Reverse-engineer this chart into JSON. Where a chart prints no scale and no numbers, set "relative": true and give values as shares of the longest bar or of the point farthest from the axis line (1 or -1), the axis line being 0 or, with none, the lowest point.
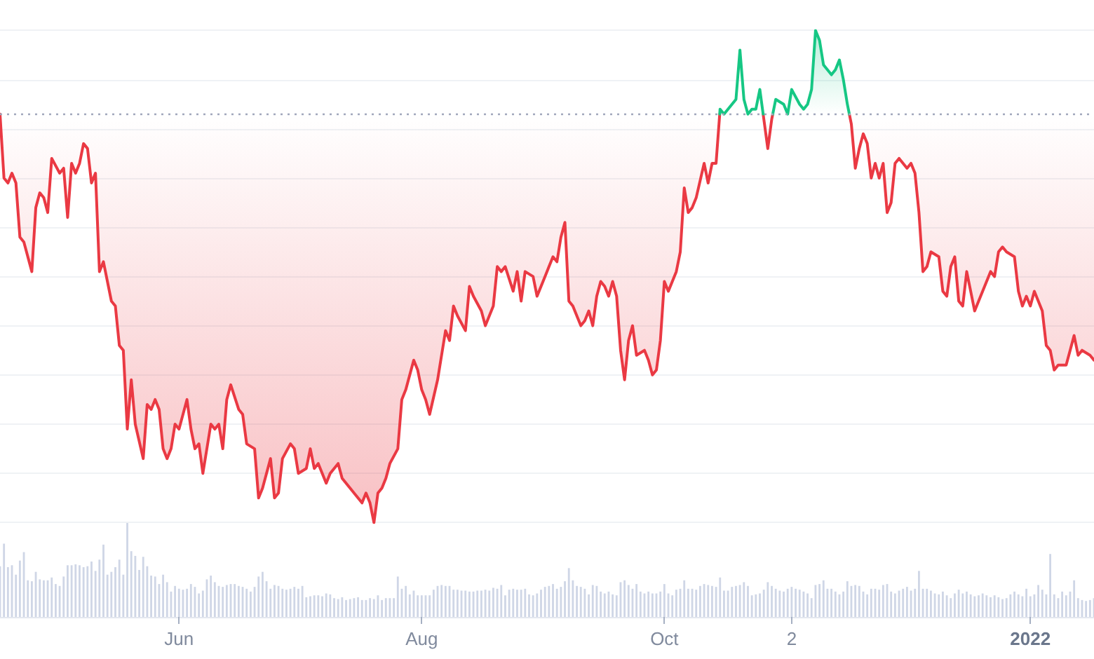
{
  "chart_data": [
    {
      "type": "line",
      "relative": true,
      "xlim": [
        "2021-04-17",
        "2022-01-17"
      ],
      "grid": "y",
      "tick_labels": false,
      "ref_lines": [
        {
          "axis": "y",
          "value": 0.83,
          "line_style": "dotted",
          "color": "#a1a7bb"
        }
      ],
      "series": [
        {
          "color": "#ea3943",
          "x": [
            "2021-04-17",
            "2021-04-18",
            "2021-04-19",
            "2021-04-20",
            "2021-04-21",
            "2021-04-22",
            "2021-04-23",
            "2021-04-25",
            "2021-04-26",
            "2021-04-27",
            "2021-04-28",
            "2021-04-29",
            "2021-04-30",
            "2021-05-02",
            "2021-05-03",
            "2021-05-04",
            "2021-05-05",
            "2021-05-06",
            "2021-05-07",
            "2021-05-08",
            "2021-05-09",
            "2021-05-10",
            "2021-05-11",
            "2021-05-12",
            "2021-05-13",
            "2021-05-15",
            "2021-05-16",
            "2021-05-17",
            "2021-05-18",
            "2021-05-19",
            "2021-05-20",
            "2021-05-21",
            "2021-05-23",
            "2021-05-24",
            "2021-05-25",
            "2021-05-26",
            "2021-05-27",
            "2021-05-28",
            "2021-05-29",
            "2021-05-30",
            "2021-05-31",
            "2021-06-01",
            "2021-06-02",
            "2021-06-03",
            "2021-06-04",
            "2021-06-05",
            "2021-06-06",
            "2021-06-07",
            "2021-06-09",
            "2021-06-10",
            "2021-06-11",
            "2021-06-12",
            "2021-06-13",
            "2021-06-14",
            "2021-06-16",
            "2021-06-17",
            "2021-06-18",
            "2021-06-20",
            "2021-06-21",
            "2021-06-22",
            "2021-06-24",
            "2021-06-25",
            "2021-06-26",
            "2021-06-27",
            "2021-06-29",
            "2021-06-30",
            "2021-07-01",
            "2021-07-03",
            "2021-07-04",
            "2021-07-05",
            "2021-07-06",
            "2021-07-08",
            "2021-07-09",
            "2021-07-11",
            "2021-07-12",
            "2021-07-13",
            "2021-07-16",
            "2021-07-17",
            "2021-07-18",
            "2021-07-19",
            "2021-07-20",
            "2021-07-21",
            "2021-07-22",
            "2021-07-23",
            "2021-07-24",
            "2021-07-26",
            "2021-07-27",
            "2021-07-28",
            "2021-07-30",
            "2021-07-31",
            "2021-08-01",
            "2021-08-02",
            "2021-08-03",
            "2021-08-05",
            "2021-08-06",
            "2021-08-07",
            "2021-08-08",
            "2021-08-09",
            "2021-08-10",
            "2021-08-12",
            "2021-08-13",
            "2021-08-14",
            "2021-08-16",
            "2021-08-17",
            "2021-08-19",
            "2021-08-20",
            "2021-08-21",
            "2021-08-22",
            "2021-08-24",
            "2021-08-25",
            "2021-08-26",
            "2021-08-27",
            "2021-08-29",
            "2021-08-30",
            "2021-09-01",
            "2021-09-02",
            "2021-09-03",
            "2021-09-04",
            "2021-09-05",
            "2021-09-06",
            "2021-09-07",
            "2021-09-08",
            "2021-09-10",
            "2021-09-11",
            "2021-09-12",
            "2021-09-13",
            "2021-09-14",
            "2021-09-15",
            "2021-09-16",
            "2021-09-17",
            "2021-09-18",
            "2021-09-19",
            "2021-09-20",
            "2021-09-21",
            "2021-09-22",
            "2021-09-23",
            "2021-09-24",
            "2021-09-26",
            "2021-09-27",
            "2021-09-28",
            "2021-09-29",
            "2021-09-30",
            "2021-10-01",
            "2021-10-02",
            "2021-10-03",
            "2021-10-04",
            "2021-10-05",
            "2021-10-06",
            "2021-10-07",
            "2021-10-08",
            "2021-10-09",
            "2021-10-11",
            "2021-10-12",
            "2021-10-13",
            "2021-10-14",
            "2021-10-14T22:00",
            "2021-10-20",
            "2021-10-25T20:00",
            "2021-10-26",
            "2021-10-27",
            "2021-10-28",
            "2021-10-28T06:00",
            "2021-11-08",
            "2021-11-16T12:00",
            "2021-11-17",
            "2021-11-18",
            "2021-11-19",
            "2021-11-20",
            "2021-11-21",
            "2021-11-22",
            "2021-11-23",
            "2021-11-24",
            "2021-11-25",
            "2021-11-26",
            "2021-11-27",
            "2021-11-28",
            "2021-11-29",
            "2021-12-01",
            "2021-12-02",
            "2021-12-03",
            "2021-12-04",
            "2021-12-05",
            "2021-12-06",
            "2021-12-07",
            "2021-12-09",
            "2021-12-10",
            "2021-12-11",
            "2021-12-12",
            "2021-12-13",
            "2021-12-14",
            "2021-12-15",
            "2021-12-16",
            "2021-12-17",
            "2021-12-18",
            "2021-12-19",
            "2021-12-22",
            "2021-12-23",
            "2021-12-24",
            "2021-12-25",
            "2021-12-26",
            "2021-12-28",
            "2021-12-29",
            "2021-12-30",
            "2021-12-31",
            "2022-01-01",
            "2022-01-02",
            "2022-01-03",
            "2022-01-04",
            "2022-01-05",
            "2022-01-06",
            "2022-01-07",
            "2022-01-08",
            "2022-01-10",
            "2022-01-12",
            "2022-01-13",
            "2022-01-14",
            "2022-01-16",
            "2022-01-17"
          ],
          "values": [
            0.83,
            0.7,
            0.69,
            0.71,
            0.69,
            0.58,
            0.57,
            0.51,
            0.64,
            0.67,
            0.66,
            0.63,
            0.74,
            0.71,
            0.72,
            0.62,
            0.73,
            0.71,
            0.73,
            0.77,
            0.76,
            0.69,
            0.71,
            0.51,
            0.53,
            0.45,
            0.44,
            0.36,
            0.35,
            0.19,
            0.29,
            0.2,
            0.13,
            0.24,
            0.23,
            0.25,
            0.23,
            0.15,
            0.13,
            0.15,
            0.2,
            0.19,
            0.22,
            0.25,
            0.19,
            0.15,
            0.16,
            0.1,
            0.2,
            0.19,
            0.2,
            0.15,
            0.25,
            0.28,
            0.23,
            0.22,
            0.16,
            0.15,
            0.05,
            0.07,
            0.13,
            0.05,
            0.06,
            0.13,
            0.16,
            0.15,
            0.1,
            0.11,
            0.15,
            0.11,
            0.12,
            0.08,
            0.1,
            0.12,
            0.09,
            0.08,
            0.05,
            0.04,
            0.06,
            0.04,
            0.0,
            0.06,
            0.07,
            0.09,
            0.12,
            0.15,
            0.25,
            0.27,
            0.33,
            0.31,
            0.27,
            0.25,
            0.22,
            0.29,
            0.34,
            0.39,
            0.37,
            0.44,
            0.42,
            0.39,
            0.48,
            0.46,
            0.43,
            0.4,
            0.44,
            0.52,
            0.51,
            0.52,
            0.47,
            0.51,
            0.45,
            0.51,
            0.5,
            0.46,
            0.5,
            0.52,
            0.54,
            0.53,
            0.58,
            0.61,
            0.45,
            0.44,
            0.4,
            0.41,
            0.43,
            0.4,
            0.46,
            0.49,
            0.48,
            0.46,
            0.49,
            0.46,
            0.35,
            0.29,
            0.37,
            0.4,
            0.34,
            0.35,
            0.33,
            0.3,
            0.31,
            0.37,
            0.49,
            0.47,
            0.49,
            0.51,
            0.55,
            0.68,
            0.63,
            0.64,
            0.66,
            0.73,
            0.69,
            0.73,
            0.73,
            0.83,
            null,
            0.83,
            0.82,
            0.76,
            0.82,
            0.83,
            null,
            0.83,
            0.81,
            0.72,
            0.76,
            0.79,
            0.77,
            0.7,
            0.73,
            0.7,
            0.73,
            0.63,
            0.65,
            0.73,
            0.74,
            0.72,
            0.73,
            0.71,
            0.63,
            0.51,
            0.52,
            0.55,
            0.54,
            0.47,
            0.46,
            0.52,
            0.54,
            0.45,
            0.44,
            0.51,
            0.47,
            0.43,
            0.45,
            0.51,
            0.5,
            0.55,
            0.56,
            0.55,
            0.54,
            0.47,
            0.44,
            0.46,
            0.44,
            0.47,
            0.45,
            0.43,
            0.36,
            0.35,
            0.31,
            0.32,
            0.32,
            0.38,
            0.34,
            0.35,
            0.34,
            0.33
          ],
          "lower": [
            0.83,
            0.7,
            0.69,
            0.71,
            0.69,
            0.58,
            0.57,
            0.51,
            0.64,
            0.67,
            0.66,
            0.63,
            0.74,
            0.71,
            0.72,
            0.62,
            0.73,
            0.71,
            0.73,
            0.77,
            0.76,
            0.69,
            0.71,
            0.51,
            0.53,
            0.45,
            0.44,
            0.36,
            0.35,
            0.19,
            0.29,
            0.2,
            0.13,
            0.24,
            0.23,
            0.25,
            0.23,
            0.15,
            0.13,
            0.15,
            0.2,
            0.19,
            0.22,
            0.25,
            0.19,
            0.15,
            0.16,
            0.1,
            0.2,
            0.19,
            0.2,
            0.15,
            0.25,
            0.28,
            0.23,
            0.22,
            0.16,
            0.15,
            0.05,
            0.07,
            0.13,
            0.05,
            0.06,
            0.13,
            0.16,
            0.15,
            0.1,
            0.11,
            0.15,
            0.11,
            0.12,
            0.08,
            0.1,
            0.12,
            0.09,
            0.08,
            0.05,
            0.04,
            0.06,
            0.04,
            0.0,
            0.06,
            0.07,
            0.09,
            0.12,
            0.15,
            0.25,
            0.27,
            0.33,
            0.31,
            0.27,
            0.25,
            0.22,
            0.29,
            0.34,
            0.39,
            0.37,
            0.44,
            0.42,
            0.39,
            0.48,
            0.46,
            0.43,
            0.4,
            0.44,
            0.52,
            0.51,
            0.52,
            0.47,
            0.51,
            0.45,
            0.51,
            0.5,
            0.46,
            0.5,
            0.52,
            0.54,
            0.53,
            0.58,
            0.61,
            0.45,
            0.44,
            0.4,
            0.41,
            0.43,
            0.4,
            0.46,
            0.49,
            0.48,
            0.46,
            0.49,
            0.46,
            0.35,
            0.29,
            0.37,
            0.4,
            0.34,
            0.35,
            0.33,
            0.3,
            0.31,
            0.37,
            0.49,
            0.47,
            0.49,
            0.51,
            0.55,
            0.68,
            0.63,
            0.64,
            0.66,
            0.73,
            0.69,
            0.73,
            0.73,
            0.83,
            null,
            null,
            null,
            null,
            null,
            null,
            null,
            0.83,
            0.81,
            0.72,
            0.76,
            0.79,
            0.77,
            0.7,
            0.73,
            0.7,
            0.73,
            0.63,
            0.65,
            0.73,
            0.74,
            0.72,
            0.73,
            0.71,
            0.63,
            0.51,
            0.52,
            0.55,
            0.54,
            0.47,
            0.46,
            0.52,
            0.54,
            0.45,
            0.44,
            0.51,
            0.47,
            0.43,
            0.45,
            0.51,
            0.5,
            0.55,
            0.56,
            0.55,
            0.54,
            0.47,
            0.44,
            0.46,
            0.44,
            0.47,
            0.45,
            0.43,
            0.36,
            0.35,
            0.31,
            0.32,
            0.32,
            0.38,
            0.34,
            0.35,
            0.34,
            0.33
          ],
          "upper": [
            0.83,
            0.83,
            0.83,
            0.83,
            0.83,
            0.83,
            0.83,
            0.83,
            0.83,
            0.83,
            0.83,
            0.83,
            0.83,
            0.83,
            0.83,
            0.83,
            0.83,
            0.83,
            0.83,
            0.83,
            0.83,
            0.83,
            0.83,
            0.83,
            0.83,
            0.83,
            0.83,
            0.83,
            0.83,
            0.83,
            0.83,
            0.83,
            0.83,
            0.83,
            0.83,
            0.83,
            0.83,
            0.83,
            0.83,
            0.83,
            0.83,
            0.83,
            0.83,
            0.83,
            0.83,
            0.83,
            0.83,
            0.83,
            0.83,
            0.83,
            0.83,
            0.83,
            0.83,
            0.83,
            0.83,
            0.83,
            0.83,
            0.83,
            0.83,
            0.83,
            0.83,
            0.83,
            0.83,
            0.83,
            0.83,
            0.83,
            0.83,
            0.83,
            0.83,
            0.83,
            0.83,
            0.83,
            0.83,
            0.83,
            0.83,
            0.83,
            0.83,
            0.83,
            0.83,
            0.83,
            0.83,
            0.83,
            0.83,
            0.83,
            0.83,
            0.83,
            0.83,
            0.83,
            0.83,
            0.83,
            0.83,
            0.83,
            0.83,
            0.83,
            0.83,
            0.83,
            0.83,
            0.83,
            0.83,
            0.83,
            0.83,
            0.83,
            0.83,
            0.83,
            0.83,
            0.83,
            0.83,
            0.83,
            0.83,
            0.83,
            0.83,
            0.83,
            0.83,
            0.83,
            0.83,
            0.83,
            0.83,
            0.83,
            0.83,
            0.83,
            0.83,
            0.83,
            0.83,
            0.83,
            0.83,
            0.83,
            0.83,
            0.83,
            0.83,
            0.83,
            0.83,
            0.83,
            0.83,
            0.83,
            0.83,
            0.83,
            0.83,
            0.83,
            0.83,
            0.83,
            0.83,
            0.83,
            0.83,
            0.83,
            0.83,
            0.83,
            0.83,
            0.83,
            0.83,
            0.83,
            0.83,
            0.83,
            0.83,
            0.83,
            0.83,
            0.83,
            null,
            null,
            null,
            null,
            null,
            null,
            null,
            0.83,
            0.83,
            0.83,
            0.83,
            0.83,
            0.83,
            0.83,
            0.83,
            0.83,
            0.83,
            0.83,
            0.83,
            0.83,
            0.83,
            0.83,
            0.83,
            0.83,
            0.83,
            0.83,
            0.83,
            0.83,
            0.83,
            0.83,
            0.83,
            0.83,
            0.83,
            0.83,
            0.83,
            0.83,
            0.83,
            0.83,
            0.83,
            0.83,
            0.83,
            0.83,
            0.83,
            0.83,
            0.83,
            0.83,
            0.83,
            0.83,
            0.83,
            0.83,
            0.83,
            0.83,
            0.83,
            0.83,
            0.83,
            0.83,
            0.83,
            0.83,
            0.83,
            0.83,
            0.83,
            0.83
          ]
        },
        {
          "color": "#16c784",
          "x": [
            "2021-10-14T22:00",
            "2021-10-15",
            "2021-10-16",
            "2021-10-18",
            "2021-10-19",
            "2021-10-20",
            "2021-10-21",
            "2021-10-22",
            "2021-10-23",
            "2021-10-24",
            "2021-10-25",
            "2021-10-25T20:00",
            "2021-10-27",
            "2021-10-28T06:00",
            "2021-10-29",
            "2021-10-31",
            "2021-11-01",
            "2021-11-02",
            "2021-11-04",
            "2021-11-05",
            "2021-11-06",
            "2021-11-07",
            "2021-11-08",
            "2021-11-09",
            "2021-11-10",
            "2021-11-12",
            "2021-11-13",
            "2021-11-14",
            "2021-11-15",
            "2021-11-16",
            "2021-11-16T12:00"
          ],
          "values": [
            0.83,
            0.84,
            0.83,
            0.85,
            0.86,
            0.96,
            0.86,
            0.83,
            0.84,
            0.84,
            0.88,
            0.83,
            null,
            0.83,
            0.86,
            0.85,
            0.83,
            0.88,
            0.85,
            0.84,
            0.85,
            0.88,
            1.0,
            0.98,
            0.93,
            0.91,
            0.92,
            0.94,
            0.9,
            0.85,
            0.83
          ],
          "lower": [
            null,
            null,
            null,
            null,
            null,
            null,
            null,
            null,
            null,
            null,
            null,
            null,
            null,
            null,
            null,
            null,
            0.83,
            0.83,
            0.83,
            0.83,
            0.83,
            0.83,
            0.83,
            0.83,
            0.83,
            0.83,
            0.83,
            0.83,
            0.83,
            0.83,
            0.83
          ],
          "upper": [
            null,
            null,
            null,
            null,
            null,
            null,
            null,
            null,
            null,
            null,
            null,
            null,
            null,
            null,
            null,
            null,
            0.83,
            0.88,
            0.85,
            0.84,
            0.85,
            0.88,
            1.0,
            0.98,
            0.93,
            0.91,
            0.92,
            0.94,
            0.9,
            0.85,
            0.83
          ]
        }
      ]
    },
    {
      "type": "bar",
      "relative": true,
      "color": "#cfd6e6",
      "xlim": [
        "2021-04-17",
        "2022-01-17"
      ],
      "tick_labels": "x",
      "xticks": [
        {
          "value": "2021-06-01",
          "label": "Jun"
        },
        {
          "value": "2021-08-01",
          "label": "Aug"
        },
        {
          "value": "2021-10-01",
          "label": "Oct"
        },
        {
          "value": "2021-11-02",
          "label": "2"
        },
        {
          "value": "2022-01-01",
          "label": "2022"
        }
      ],
      "x": [
        "2021-04-17",
        "2021-04-18",
        "2021-04-19",
        "2021-04-20",
        "2021-04-21",
        "2021-04-22",
        "2021-04-23",
        "2021-04-24",
        "2021-04-25",
        "2021-04-26",
        "2021-04-27",
        "2021-04-28",
        "2021-04-29",
        "2021-04-30",
        "2021-05-01",
        "2021-05-02",
        "2021-05-03",
        "2021-05-04",
        "2021-05-05",
        "2021-05-06",
        "2021-05-07",
        "2021-05-08",
        "2021-05-09",
        "2021-05-10",
        "2021-05-11",
        "2021-05-12",
        "2021-05-13",
        "2021-05-14",
        "2021-05-15",
        "2021-05-16",
        "2021-05-17",
        "2021-05-18",
        "2021-05-19",
        "2021-05-20",
        "2021-05-21",
        "2021-05-22",
        "2021-05-23",
        "2021-05-24",
        "2021-05-25",
        "2021-05-26",
        "2021-05-27",
        "2021-05-28",
        "2021-05-29",
        "2021-05-30",
        "2021-05-31",
        "2021-06-01",
        "2021-06-02",
        "2021-06-03",
        "2021-06-04",
        "2021-06-05",
        "2021-06-06",
        "2021-06-07",
        "2021-06-08",
        "2021-06-09",
        "2021-06-10",
        "2021-06-11",
        "2021-06-12",
        "2021-06-13",
        "2021-06-14",
        "2021-06-15",
        "2021-06-16",
        "2021-06-17",
        "2021-06-18",
        "2021-06-19",
        "2021-06-20",
        "2021-06-21",
        "2021-06-22",
        "2021-06-23",
        "2021-06-24",
        "2021-06-25",
        "2021-06-26",
        "2021-06-27",
        "2021-06-28",
        "2021-06-29",
        "2021-06-30",
        "2021-07-01",
        "2021-07-02",
        "2021-07-03",
        "2021-07-04",
        "2021-07-05",
        "2021-07-06",
        "2021-07-07",
        "2021-07-08",
        "2021-07-09",
        "2021-07-10",
        "2021-07-11",
        "2021-07-12",
        "2021-07-13",
        "2021-07-14",
        "2021-07-15",
        "2021-07-16",
        "2021-07-17",
        "2021-07-18",
        "2021-07-19",
        "2021-07-20",
        "2021-07-21",
        "2021-07-22",
        "2021-07-23",
        "2021-07-24",
        "2021-07-25",
        "2021-07-26",
        "2021-07-27",
        "2021-07-28",
        "2021-07-29",
        "2021-07-30",
        "2021-07-31",
        "2021-08-01",
        "2021-08-02",
        "2021-08-03",
        "2021-08-04",
        "2021-08-05",
        "2021-08-06",
        "2021-08-07",
        "2021-08-08",
        "2021-08-09",
        "2021-08-10",
        "2021-08-11",
        "2021-08-12",
        "2021-08-13",
        "2021-08-14",
        "2021-08-15",
        "2021-08-16",
        "2021-08-17",
        "2021-08-18",
        "2021-08-19",
        "2021-08-20",
        "2021-08-21",
        "2021-08-22",
        "2021-08-23",
        "2021-08-24",
        "2021-08-25",
        "2021-08-26",
        "2021-08-27",
        "2021-08-28",
        "2021-08-29",
        "2021-08-30",
        "2021-08-31",
        "2021-09-01",
        "2021-09-02",
        "2021-09-03",
        "2021-09-04",
        "2021-09-05",
        "2021-09-06",
        "2021-09-07",
        "2021-09-08",
        "2021-09-09",
        "2021-09-10",
        "2021-09-11",
        "2021-09-12",
        "2021-09-13",
        "2021-09-14",
        "2021-09-15",
        "2021-09-16",
        "2021-09-17",
        "2021-09-18",
        "2021-09-19",
        "2021-09-20",
        "2021-09-21",
        "2021-09-22",
        "2021-09-23",
        "2021-09-24",
        "2021-09-25",
        "2021-09-26",
        "2021-09-27",
        "2021-09-28",
        "2021-09-29",
        "2021-09-30",
        "2021-10-01",
        "2021-10-02",
        "2021-10-03",
        "2021-10-04",
        "2021-10-05",
        "2021-10-06",
        "2021-10-07",
        "2021-10-08",
        "2021-10-09",
        "2021-10-10",
        "2021-10-11",
        "2021-10-12",
        "2021-10-13",
        "2021-10-14",
        "2021-10-15",
        "2021-10-16",
        "2021-10-17",
        "2021-10-18",
        "2021-10-19",
        "2021-10-20",
        "2021-10-21",
        "2021-10-22",
        "2021-10-23",
        "2021-10-24",
        "2021-10-25",
        "2021-10-26",
        "2021-10-27",
        "2021-10-28",
        "2021-10-29",
        "2021-10-30",
        "2021-10-31",
        "2021-11-01",
        "2021-11-02",
        "2021-11-03",
        "2021-11-04",
        "2021-11-05",
        "2021-11-06",
        "2021-11-07",
        "2021-11-08",
        "2021-11-09",
        "2021-11-10",
        "2021-11-11",
        "2021-11-12",
        "2021-11-13",
        "2021-11-14",
        "2021-11-15",
        "2021-11-16",
        "2021-11-17",
        "2021-11-18",
        "2021-11-19",
        "2021-11-20",
        "2021-11-21",
        "2021-11-22",
        "2021-11-23",
        "2021-11-24",
        "2021-11-25",
        "2021-11-26",
        "2021-11-27",
        "2021-11-28",
        "2021-11-29",
        "2021-11-30",
        "2021-12-01",
        "2021-12-02",
        "2021-12-03",
        "2021-12-04",
        "2021-12-05",
        "2021-12-06",
        "2021-12-07",
        "2021-12-08",
        "2021-12-09",
        "2021-12-10",
        "2021-12-11",
        "2021-12-12",
        "2021-12-13",
        "2021-12-14",
        "2021-12-15",
        "2021-12-16",
        "2021-12-17",
        "2021-12-18",
        "2021-12-19",
        "2021-12-20",
        "2021-12-21",
        "2021-12-22",
        "2021-12-23",
        "2021-12-24",
        "2021-12-25",
        "2021-12-26",
        "2021-12-27",
        "2021-12-28",
        "2021-12-29",
        "2021-12-30",
        "2021-12-31",
        "2022-01-01",
        "2022-01-02",
        "2022-01-03",
        "2022-01-04",
        "2022-01-05",
        "2022-01-06",
        "2022-01-07",
        "2022-01-08",
        "2022-01-09",
        "2022-01-10",
        "2022-01-11",
        "2022-01-12",
        "2022-01-13",
        "2022-01-14",
        "2022-01-15",
        "2022-01-16",
        "2022-01-17"
      ],
      "values": [
        0.54,
        0.78,
        0.53,
        0.55,
        0.45,
        0.6,
        0.69,
        0.39,
        0.38,
        0.48,
        0.4,
        0.39,
        0.39,
        0.42,
        0.35,
        0.33,
        0.43,
        0.55,
        0.55,
        0.56,
        0.55,
        0.53,
        0.54,
        0.59,
        0.49,
        0.61,
        0.77,
        0.45,
        0.48,
        0.53,
        0.61,
        0.45,
        1.0,
        0.7,
        0.65,
        0.5,
        0.64,
        0.54,
        0.44,
        0.43,
        0.35,
        0.45,
        0.37,
        0.27,
        0.33,
        0.3,
        0.29,
        0.3,
        0.35,
        0.32,
        0.25,
        0.28,
        0.4,
        0.44,
        0.37,
        0.33,
        0.32,
        0.34,
        0.35,
        0.35,
        0.33,
        0.32,
        0.3,
        0.27,
        0.32,
        0.43,
        0.48,
        0.38,
        0.3,
        0.34,
        0.33,
        0.3,
        0.29,
        0.3,
        0.32,
        0.3,
        0.33,
        0.21,
        0.22,
        0.23,
        0.23,
        0.22,
        0.25,
        0.24,
        0.2,
        0.19,
        0.21,
        0.18,
        0.19,
        0.2,
        0.21,
        0.18,
        0.18,
        0.2,
        0.19,
        0.23,
        0.18,
        0.2,
        0.2,
        0.2,
        0.43,
        0.3,
        0.33,
        0.24,
        0.28,
        0.23,
        0.23,
        0.23,
        0.23,
        0.29,
        0.33,
        0.34,
        0.33,
        0.33,
        0.29,
        0.29,
        0.28,
        0.28,
        0.27,
        0.27,
        0.28,
        0.28,
        0.29,
        0.28,
        0.31,
        0.3,
        0.34,
        0.23,
        0.29,
        0.3,
        0.29,
        0.29,
        0.3,
        0.24,
        0.23,
        0.25,
        0.29,
        0.32,
        0.33,
        0.35,
        0.3,
        0.32,
        0.38,
        0.52,
        0.39,
        0.33,
        0.32,
        0.3,
        0.24,
        0.34,
        0.33,
        0.27,
        0.25,
        0.27,
        0.24,
        0.23,
        0.37,
        0.39,
        0.34,
        0.3,
        0.35,
        0.27,
        0.25,
        0.27,
        0.25,
        0.25,
        0.27,
        0.35,
        0.25,
        0.23,
        0.29,
        0.3,
        0.39,
        0.3,
        0.3,
        0.29,
        0.33,
        0.35,
        0.34,
        0.33,
        0.32,
        0.42,
        0.28,
        0.28,
        0.32,
        0.33,
        0.34,
        0.37,
        0.33,
        0.23,
        0.24,
        0.25,
        0.29,
        0.37,
        0.33,
        0.3,
        0.28,
        0.27,
        0.3,
        0.32,
        0.3,
        0.29,
        0.27,
        0.25,
        0.2,
        0.34,
        0.35,
        0.39,
        0.3,
        0.3,
        0.27,
        0.24,
        0.27,
        0.38,
        0.33,
        0.34,
        0.33,
        0.27,
        0.24,
        0.3,
        0.3,
        0.29,
        0.34,
        0.35,
        0.27,
        0.25,
        0.28,
        0.3,
        0.32,
        0.28,
        0.3,
        0.49,
        0.3,
        0.3,
        0.28,
        0.25,
        0.24,
        0.27,
        0.23,
        0.2,
        0.25,
        0.29,
        0.25,
        0.27,
        0.24,
        0.22,
        0.23,
        0.25,
        0.23,
        0.21,
        0.23,
        0.21,
        0.19,
        0.2,
        0.24,
        0.27,
        0.24,
        0.22,
        0.3,
        0.22,
        0.24,
        0.34,
        0.29,
        0.24,
        0.67,
        0.24,
        0.2,
        0.27,
        0.23,
        0.27,
        0.39,
        0.2,
        0.18,
        0.17,
        0.18,
        0.2
      ]
    }
  ]
}
